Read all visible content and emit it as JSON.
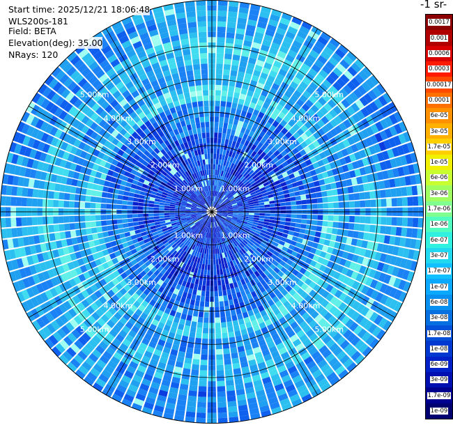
{
  "info": {
    "start_time": "Start time: 2025/12/21 18:06:48",
    "device": "WLS200s-181",
    "field": "Field: BETA",
    "elevation": "Elevation(deg): 35.00",
    "nrays": "NRays: 120"
  },
  "colorbar": {
    "unit_label": "-1 sr-",
    "ticks": [
      "0.0017",
      "0.001",
      "0.0006",
      "0.0003",
      "0.00017",
      "0.0001",
      "6e-05",
      "3e-05",
      "1.7e-05",
      "1e-05",
      "6e-06",
      "3e-06",
      "1.7e-06",
      "1e-06",
      "6e-07",
      "3e-07",
      "1.7e-07",
      "1e-07",
      "6e-08",
      "3e-08",
      "1.7e-08",
      "1e-08",
      "6e-09",
      "3e-09",
      "1.7e-09",
      "1e-09"
    ],
    "colors": [
      "#8b0000",
      "#b00000",
      "#d80000",
      "#ff1a00",
      "#ff4a00",
      "#ff7000",
      "#ff9000",
      "#ffb000",
      "#ffd000",
      "#f0f000",
      "#c8ff30",
      "#a0ff60",
      "#80ff90",
      "#50ffc0",
      "#30f0e0",
      "#20d8f0",
      "#10c0ff",
      "#0aa8ff",
      "#0890f0",
      "#0670e0",
      "#0450d8",
      "#0238d0",
      "#0020c8",
      "#0010b0",
      "#000090",
      "#000070"
    ]
  },
  "chart_data": {
    "type": "heatmap",
    "projection": "polar",
    "field": "BETA",
    "elevation_deg": 35.0,
    "n_rays": 120,
    "range_rings_km": [
      1.0,
      2.0,
      3.0,
      4.0,
      5.0
    ],
    "range_ring_labels": [
      "1.00km",
      "2.00km",
      "3.00km",
      "4.00km",
      "5.00km"
    ],
    "color_scale": "log",
    "vmin": 1e-09,
    "vmax": 0.0017,
    "grid": true
  }
}
